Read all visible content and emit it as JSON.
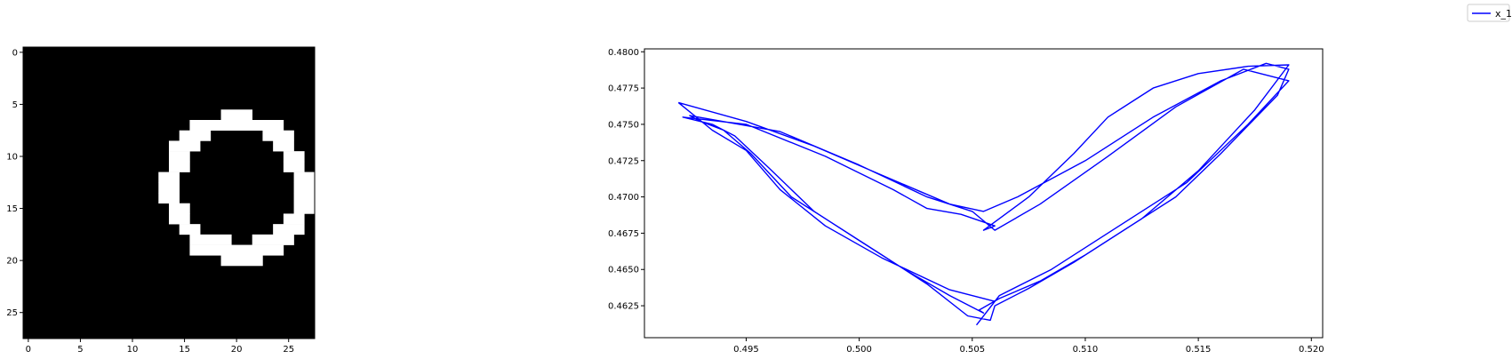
{
  "legend": {
    "label": "x_1",
    "color": "#0000ff",
    "placement": "upper-right"
  },
  "chart_data": [
    {
      "type": "heatmap",
      "colormap": "gray",
      "rows": 28,
      "cols": 28,
      "xlim": [
        -0.5,
        27.5
      ],
      "ylim": [
        27.5,
        -0.5
      ],
      "xticks": [
        0,
        5,
        10,
        15,
        20,
        25
      ],
      "yticks": [
        0,
        5,
        10,
        15,
        20,
        25
      ],
      "xtick_labels": [
        "0",
        "5",
        "10",
        "15",
        "20",
        "25"
      ],
      "ytick_labels": [
        "0",
        "5",
        "10",
        "15",
        "20",
        "25"
      ],
      "white_pixel_runs": [
        {
          "row": 6,
          "cols": [
            19,
            21
          ]
        },
        {
          "row": 7,
          "cols": [
            16,
            24
          ]
        },
        {
          "row": 8,
          "cols": [
            15,
            17
          ]
        },
        {
          "row": 8,
          "cols": [
            23,
            25
          ]
        },
        {
          "row": 9,
          "cols": [
            14,
            16
          ]
        },
        {
          "row": 9,
          "cols": [
            24,
            25
          ]
        },
        {
          "row": 10,
          "cols": [
            14,
            15
          ]
        },
        {
          "row": 10,
          "cols": [
            25,
            26
          ]
        },
        {
          "row": 11,
          "cols": [
            14,
            15
          ]
        },
        {
          "row": 11,
          "cols": [
            25,
            26
          ]
        },
        {
          "row": 12,
          "cols": [
            13,
            14
          ]
        },
        {
          "row": 12,
          "cols": [
            26,
            27
          ]
        },
        {
          "row": 13,
          "cols": [
            13,
            14
          ]
        },
        {
          "row": 13,
          "cols": [
            26,
            27
          ]
        },
        {
          "row": 14,
          "cols": [
            13,
            14
          ]
        },
        {
          "row": 14,
          "cols": [
            26,
            27
          ]
        },
        {
          "row": 15,
          "cols": [
            14,
            15
          ]
        },
        {
          "row": 15,
          "cols": [
            26,
            27
          ]
        },
        {
          "row": 16,
          "cols": [
            14,
            15
          ]
        },
        {
          "row": 16,
          "cols": [
            25,
            26
          ]
        },
        {
          "row": 17,
          "cols": [
            15,
            16
          ]
        },
        {
          "row": 17,
          "cols": [
            24,
            26
          ]
        },
        {
          "row": 18,
          "cols": [
            16,
            19
          ]
        },
        {
          "row": 18,
          "cols": [
            22,
            25
          ]
        },
        {
          "row": 19,
          "cols": [
            16,
            24
          ]
        },
        {
          "row": 20,
          "cols": [
            19,
            22
          ]
        }
      ]
    },
    {
      "type": "line",
      "xlim": [
        0.4905,
        0.5205
      ],
      "ylim": [
        0.4603,
        0.4802
      ],
      "xticks": [
        0.495,
        0.5,
        0.505,
        0.51,
        0.515,
        0.52
      ],
      "yticks": [
        0.4625,
        0.465,
        0.4675,
        0.47,
        0.4725,
        0.475,
        0.4775,
        0.48
      ],
      "xtick_labels": [
        "0.495",
        "0.500",
        "0.505",
        "0.510",
        "0.515",
        "0.520"
      ],
      "ytick_labels": [
        "0.4625",
        "0.4650",
        "0.4675",
        "0.4700",
        "0.4725",
        "0.4750",
        "0.4775",
        "0.4800"
      ],
      "series": [
        {
          "name": "x_1",
          "color": "#0000ff",
          "x": [
            0.492,
            0.495,
            0.498,
            0.501,
            0.504,
            0.5055,
            0.507,
            0.51,
            0.513,
            0.516,
            0.518,
            0.519,
            0.5185,
            0.516,
            0.514,
            0.512,
            0.51,
            0.508,
            0.5062,
            0.5053,
            0.5055,
            0.504,
            0.502,
            0.5,
            0.498,
            0.496,
            0.4945,
            0.4935,
            0.4922,
            0.495,
            0.4985,
            0.5015,
            0.503,
            0.5045,
            0.506,
            0.5055,
            0.5075,
            0.5095,
            0.511,
            0.513,
            0.515,
            0.5172,
            0.519,
            0.5175,
            0.515,
            0.5125,
            0.5095,
            0.5075,
            0.506,
            0.5058,
            0.5048,
            0.503,
            0.501,
            0.499,
            0.497,
            0.4952,
            0.494,
            0.493,
            0.4925,
            0.4965,
            0.5,
            0.503,
            0.505,
            0.506,
            0.508,
            0.511,
            0.514,
            0.517,
            0.519,
            0.5172,
            0.5145,
            0.5115,
            0.5085,
            0.5062,
            0.5052,
            0.506,
            0.504,
            0.501,
            0.4985,
            0.4965,
            0.495,
            0.4935,
            0.492
          ],
          "y": [
            0.4765,
            0.4752,
            0.4735,
            0.4715,
            0.4695,
            0.469,
            0.47,
            0.4725,
            0.4755,
            0.478,
            0.4792,
            0.4788,
            0.477,
            0.473,
            0.47,
            0.468,
            0.466,
            0.4642,
            0.463,
            0.4622,
            0.462,
            0.4632,
            0.465,
            0.467,
            0.469,
            0.472,
            0.4742,
            0.475,
            0.4755,
            0.475,
            0.4728,
            0.4705,
            0.4692,
            0.4688,
            0.468,
            0.4677,
            0.47,
            0.473,
            0.4755,
            0.4775,
            0.4785,
            0.479,
            0.4791,
            0.476,
            0.4718,
            0.4685,
            0.4655,
            0.4637,
            0.4625,
            0.4615,
            0.4618,
            0.464,
            0.466,
            0.468,
            0.47,
            0.473,
            0.4746,
            0.4752,
            0.4756,
            0.4745,
            0.4722,
            0.47,
            0.469,
            0.4677,
            0.4695,
            0.4728,
            0.4762,
            0.4788,
            0.478,
            0.475,
            0.471,
            0.468,
            0.465,
            0.4632,
            0.4612,
            0.4628,
            0.4636,
            0.4658,
            0.468,
            0.4705,
            0.4732,
            0.4746,
            0.4765
          ]
        }
      ]
    }
  ]
}
